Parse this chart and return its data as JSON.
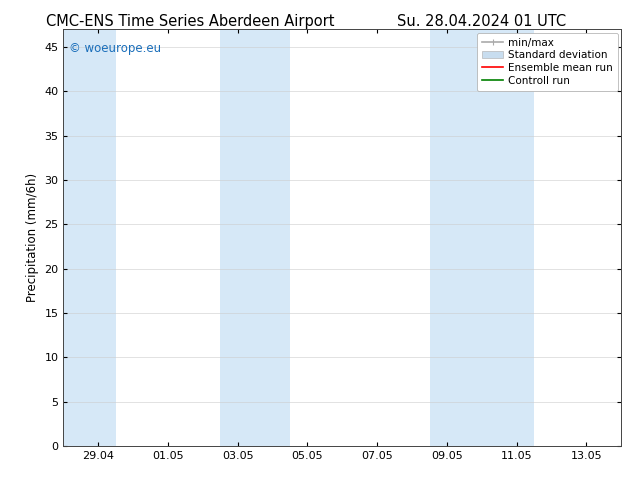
{
  "title_left": "CMC-ENS Time Series Aberdeen Airport",
  "title_right": "Su. 28.04.2024 01 UTC",
  "ylabel": "Precipitation (mm/6h)",
  "watermark": "© woeurope.eu",
  "watermark_color": "#1a6eba",
  "ylim": [
    0,
    47
  ],
  "yticks": [
    0,
    5,
    10,
    15,
    20,
    25,
    30,
    35,
    40,
    45
  ],
  "xlim_start": 0.0,
  "xlim_end": 16.0,
  "xtick_labels": [
    "29.04",
    "01.05",
    "03.05",
    "05.05",
    "07.05",
    "09.05",
    "11.05",
    "13.05"
  ],
  "xtick_positions": [
    1.0,
    3.0,
    5.0,
    7.0,
    9.0,
    11.0,
    13.0,
    15.0
  ],
  "shaded_bands": [
    {
      "x_start": 0.0,
      "x_end": 1.5
    },
    {
      "x_start": 4.5,
      "x_end": 6.5
    },
    {
      "x_start": 10.5,
      "x_end": 13.5
    }
  ],
  "shaded_color": "#d6e8f7",
  "shaded_alpha": 1.0,
  "background_color": "#ffffff",
  "plot_bg_color": "#ffffff",
  "legend_items": [
    {
      "label": "min/max",
      "color": "#aaaaaa",
      "lw": 1.2,
      "type": "errorbar"
    },
    {
      "label": "Standard deviation",
      "color": "#c8ddef",
      "lw": 8,
      "type": "patch"
    },
    {
      "label": "Ensemble mean run",
      "color": "#ff0000",
      "lw": 1.2,
      "type": "line"
    },
    {
      "label": "Controll run",
      "color": "#008000",
      "lw": 1.2,
      "type": "line"
    }
  ],
  "grid_color": "#cccccc",
  "grid_linewidth": 0.4,
  "title_fontsize": 10.5,
  "tick_fontsize": 8,
  "ylabel_fontsize": 8.5,
  "legend_fontsize": 7.5
}
